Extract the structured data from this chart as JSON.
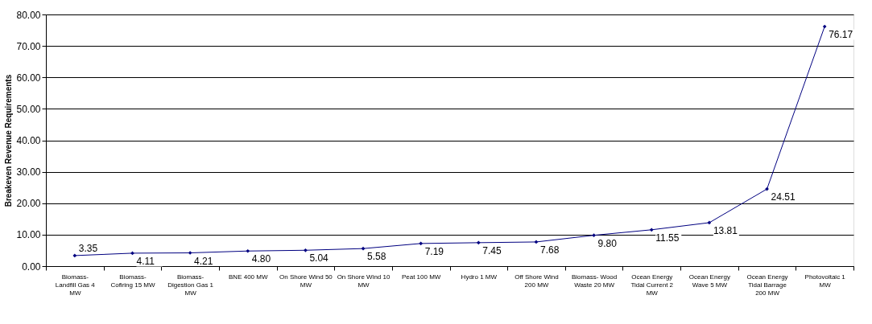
{
  "chart_data": {
    "type": "line",
    "ylabel": "Breakeven Revenue Requirements",
    "categories": [
      "Biomass- Landfill Gas 4 MW",
      "Biomass- Cofiring 15 MW",
      "Biomass- Digestion Gas 1 MW",
      "BNE 400 MW",
      "On Shore Wind 50 MW",
      "On Shore Wind 10 MW",
      "Peat 100 MW",
      "Hydro 1 MW",
      "Off Shore Wind 200 MW",
      "Biomass- Wood Waste 20 MW",
      "Ocean Energy Tidal Current 2 MW",
      "Ocean Energy Wave 5 MW",
      "Ocean Energy Tidal Barrage 200 MW",
      "Photovoltaic 1 MW"
    ],
    "series": [
      {
        "color": "#000080",
        "values": [
          3.35,
          4.11,
          4.21,
          4.8,
          5.04,
          5.58,
          7.19,
          7.45,
          7.68,
          9.8,
          11.55,
          13.81,
          24.51,
          76.17
        ],
        "value_labels": [
          "3.35",
          "4.11",
          "4.21",
          "4.80",
          "5.04",
          "5.58",
          "7.19",
          "7.45",
          "7.68",
          "9.80",
          "11.55",
          "13.81",
          "24.51",
          "76.17"
        ]
      }
    ],
    "ylim": [
      0,
      80
    ],
    "yticks": [
      {
        "value": 0,
        "label": "0.00"
      },
      {
        "value": 10,
        "label": "10.00"
      },
      {
        "value": 20,
        "label": "20.00"
      },
      {
        "value": 30,
        "label": "30.00"
      },
      {
        "value": 40,
        "label": "40.00"
      },
      {
        "value": 50,
        "label": "50.00"
      },
      {
        "value": 60,
        "label": "60.00"
      },
      {
        "value": 70,
        "label": "70.00"
      },
      {
        "value": 80,
        "label": "80.00"
      }
    ],
    "grid": "y",
    "marker": "diamond",
    "line_style": "solid"
  }
}
